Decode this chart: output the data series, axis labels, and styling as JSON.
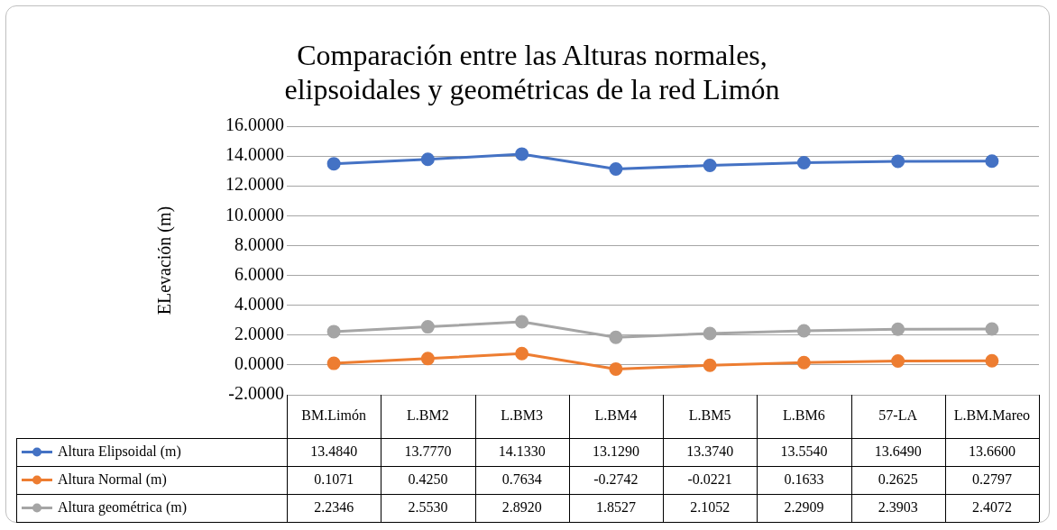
{
  "chart_data": {
    "type": "line",
    "title": "Comparación entre las Alturas normales, elipsoidales y geométricas de la red Limón",
    "ylabel": "ELevación (m)",
    "categories": [
      "BM.Limón",
      "L.BM2",
      "L.BM3",
      "L.BM4",
      "L.BM5",
      "L.BM6",
      "57-LA",
      "L.BM.Mareo"
    ],
    "series": [
      {
        "name": "Altura Elipsoidal (m)",
        "color": "#4472c4",
        "values": [
          13.484,
          13.777,
          14.133,
          13.129,
          13.374,
          13.554,
          13.649,
          13.66
        ],
        "value_labels": [
          "13.4840",
          "13.7770",
          "14.1330",
          "13.1290",
          "13.3740",
          "13.5540",
          "13.6490",
          "13.6600"
        ]
      },
      {
        "name": "Altura Normal (m)",
        "color": "#ed7d31",
        "values": [
          0.1071,
          0.425,
          0.7634,
          -0.2742,
          -0.0221,
          0.1633,
          0.2625,
          0.2797
        ],
        "value_labels": [
          "0.1071",
          "0.4250",
          "0.7634",
          "-0.2742",
          "-0.0221",
          "0.1633",
          "0.2625",
          "0.2797"
        ]
      },
      {
        "name": "Altura geométrica (m)",
        "color": "#a5a5a5",
        "values": [
          2.2346,
          2.553,
          2.892,
          1.8527,
          2.1052,
          2.2909,
          2.3903,
          2.4072
        ],
        "value_labels": [
          "2.2346",
          "2.5530",
          "2.8920",
          "1.8527",
          "2.1052",
          "2.2909",
          "2.3903",
          "2.4072"
        ]
      }
    ],
    "ylim": [
      -2,
      16
    ],
    "yticks": [
      {
        "value": -2,
        "label": "-2.0000"
      },
      {
        "value": 0,
        "label": "0.0000"
      },
      {
        "value": 2,
        "label": "2.0000"
      },
      {
        "value": 4,
        "label": "4.0000"
      },
      {
        "value": 6,
        "label": "6.0000"
      },
      {
        "value": 8,
        "label": "8.0000"
      },
      {
        "value": 10,
        "label": "10.0000"
      },
      {
        "value": 12,
        "label": "12.0000"
      },
      {
        "value": 14,
        "label": "14.0000"
      },
      {
        "value": 16,
        "label": "16.0000"
      }
    ],
    "grid": "y",
    "legend": "bottom",
    "marker": "circle",
    "line_style": "solid"
  }
}
